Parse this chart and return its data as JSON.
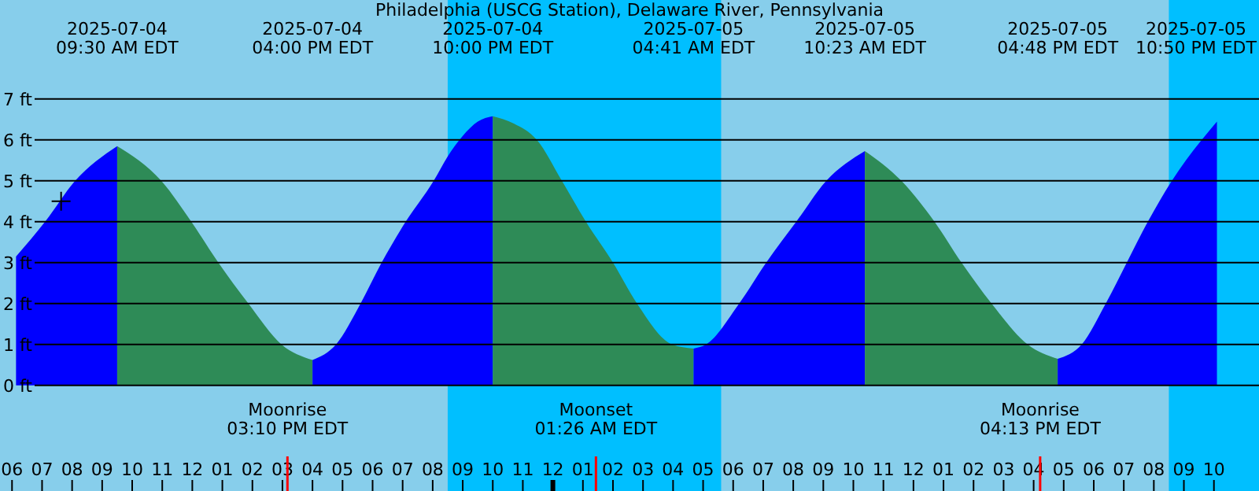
{
  "chart_data": {
    "type": "area",
    "title": "Philadelphia (USCG Station), Delaware River, Pennsylvania",
    "series": [
      {
        "color": "#0000ff",
        "x": [
          "2025-07-04T06:08",
          "2025-07-04T07:06",
          "2025-07-04T08:06",
          "2025-07-04T09:30"
        ],
        "values": [
          3.15,
          4,
          5,
          5.85
        ]
      },
      {
        "color": "#2e8b57",
        "x": [
          "2025-07-04T09:30",
          "2025-07-04T10:58",
          "2025-07-04T11:58",
          "2025-07-04T12:52",
          "2025-07-04T13:52",
          "2025-07-04T14:58",
          "2025-07-04T16:00"
        ],
        "values": [
          5.85,
          5,
          4,
          3,
          2,
          1,
          0.62
        ]
      },
      {
        "color": "#0000ff",
        "x": [
          "2025-07-04T16:00",
          "2025-07-04T16:47",
          "2025-07-04T17:36",
          "2025-07-04T18:18",
          "2025-07-04T19:06",
          "2025-07-04T20:02",
          "2025-07-04T20:30",
          "2025-07-04T21:00",
          "2025-07-04T21:30",
          "2025-07-04T22:00"
        ],
        "values": [
          0.62,
          1,
          2,
          3,
          4,
          5,
          5.6,
          6.1,
          6.45,
          6.58
        ]
      },
      {
        "color": "#2e8b57",
        "x": [
          "2025-07-04T22:00",
          "2025-07-04T22:42",
          "2025-07-04T23:28",
          "2025-07-05T00:18",
          "2025-07-05T01:06",
          "2025-07-05T02:00",
          "2025-07-05T02:48",
          "2025-07-05T03:58",
          "2025-07-05T04:41"
        ],
        "values": [
          6.58,
          6.4,
          6,
          5,
          4,
          3,
          2,
          1,
          0.9
        ]
      },
      {
        "color": "#0000ff",
        "x": [
          "2025-07-05T04:41",
          "2025-07-05T05:06",
          "2025-07-05T06:12",
          "2025-07-05T07:06",
          "2025-07-05T08:06",
          "2025-07-05T09:06",
          "2025-07-05T10:23"
        ],
        "values": [
          0.9,
          1,
          2,
          3,
          4,
          5,
          5.73
        ]
      },
      {
        "color": "#2e8b57",
        "x": [
          "2025-07-05T10:23",
          "2025-07-05T11:36",
          "2025-07-05T12:42",
          "2025-07-05T13:36",
          "2025-07-05T14:36",
          "2025-07-05T15:48",
          "2025-07-05T16:48"
        ],
        "values": [
          5.73,
          5,
          4,
          3,
          2,
          1,
          0.65
        ]
      },
      {
        "color": "#0000ff",
        "x": [
          "2025-07-05T16:48",
          "2025-07-05T17:36",
          "2025-07-05T18:24",
          "2025-07-05T19:06",
          "2025-07-05T19:48",
          "2025-07-05T20:36",
          "2025-07-05T22:06"
        ],
        "values": [
          0.65,
          1,
          2,
          3,
          4,
          5,
          6.45
        ]
      },
      {
        "type": "scatter",
        "color": "#000000",
        "marker": "cross",
        "x": [
          "2025-07-04T07:38"
        ],
        "values": [
          4.5
        ]
      }
    ],
    "xlim": [
      "2025-07-04T05:36",
      "2025-07-05T23:30"
    ],
    "xticks": [
      {
        "value": "2025-07-04T06:00",
        "label": "06"
      },
      {
        "value": "2025-07-04T07:00",
        "label": "07"
      },
      {
        "value": "2025-07-04T08:00",
        "label": "08"
      },
      {
        "value": "2025-07-04T09:00",
        "label": "09"
      },
      {
        "value": "2025-07-04T10:00",
        "label": "10"
      },
      {
        "value": "2025-07-04T11:00",
        "label": "11"
      },
      {
        "value": "2025-07-04T12:00",
        "label": "12"
      },
      {
        "value": "2025-07-04T13:00",
        "label": "01"
      },
      {
        "value": "2025-07-04T14:00",
        "label": "02"
      },
      {
        "value": "2025-07-04T15:00",
        "label": "03"
      },
      {
        "value": "2025-07-04T16:00",
        "label": "04"
      },
      {
        "value": "2025-07-04T17:00",
        "label": "05"
      },
      {
        "value": "2025-07-04T18:00",
        "label": "06"
      },
      {
        "value": "2025-07-04T19:00",
        "label": "07"
      },
      {
        "value": "2025-07-04T20:00",
        "label": "08"
      },
      {
        "value": "2025-07-04T21:00",
        "label": "09"
      },
      {
        "value": "2025-07-04T22:00",
        "label": "10"
      },
      {
        "value": "2025-07-04T23:00",
        "label": "11"
      },
      {
        "value": "2025-07-05T00:00",
        "label": "12"
      },
      {
        "value": "2025-07-05T01:00",
        "label": "01"
      },
      {
        "value": "2025-07-05T02:00",
        "label": "02"
      },
      {
        "value": "2025-07-05T03:00",
        "label": "03"
      },
      {
        "value": "2025-07-05T04:00",
        "label": "04"
      },
      {
        "value": "2025-07-05T05:00",
        "label": "05"
      },
      {
        "value": "2025-07-05T06:00",
        "label": "06"
      },
      {
        "value": "2025-07-05T07:00",
        "label": "07"
      },
      {
        "value": "2025-07-05T08:00",
        "label": "08"
      },
      {
        "value": "2025-07-05T09:00",
        "label": "09"
      },
      {
        "value": "2025-07-05T10:00",
        "label": "10"
      },
      {
        "value": "2025-07-05T11:00",
        "label": "11"
      },
      {
        "value": "2025-07-05T12:00",
        "label": "12"
      },
      {
        "value": "2025-07-05T13:00",
        "label": "01"
      },
      {
        "value": "2025-07-05T14:00",
        "label": "02"
      },
      {
        "value": "2025-07-05T15:00",
        "label": "03"
      },
      {
        "value": "2025-07-05T16:00",
        "label": "04"
      },
      {
        "value": "2025-07-05T17:00",
        "label": "05"
      },
      {
        "value": "2025-07-05T18:00",
        "label": "06"
      },
      {
        "value": "2025-07-05T19:00",
        "label": "07"
      },
      {
        "value": "2025-07-05T20:00",
        "label": "08"
      },
      {
        "value": "2025-07-05T21:00",
        "label": "09"
      },
      {
        "value": "2025-07-05T22:00",
        "label": "10"
      }
    ],
    "ylim": [
      -2.58,
      9.42
    ],
    "yticks": [
      {
        "value": 0,
        "label": "0 ft"
      },
      {
        "value": 1,
        "label": "1 ft"
      },
      {
        "value": 2,
        "label": "2 ft"
      },
      {
        "value": 3,
        "label": "3 ft"
      },
      {
        "value": 4,
        "label": "4 ft"
      },
      {
        "value": 5,
        "label": "5 ft"
      },
      {
        "value": 6,
        "label": "6 ft"
      },
      {
        "value": 7,
        "label": "7 ft"
      }
    ],
    "grid": "y",
    "bands": [
      {
        "axis": "x",
        "from": "2025-07-04T20:30",
        "to": "2025-07-05T05:36",
        "color": "#00bfff"
      },
      {
        "axis": "x",
        "from": "2025-07-05T20:30",
        "to": "2025-07-05T23:30",
        "color": "#00bfff"
      }
    ],
    "ref_lines": [
      {
        "axis": "x",
        "value": "2025-07-04T15:10",
        "label": "Moonrise\n03:10 PM EDT",
        "color": "#ff0000"
      },
      {
        "axis": "x",
        "value": "2025-07-05T01:26",
        "label": "Moonset\n01:26 AM EDT",
        "color": "#ff0000"
      },
      {
        "axis": "x",
        "value": "2025-07-05T16:13",
        "label": "Moonrise\n04:13 PM EDT",
        "color": "#ff0000"
      }
    ],
    "annotations": [
      "2025-07-04\n09:30 AM EDT",
      "2025-07-04\n04:00 PM EDT",
      "2025-07-04\n10:00 PM EDT",
      "2025-07-05\n04:41 AM EDT",
      "2025-07-05\n10:23 AM EDT",
      "2025-07-05\n04:48 PM EDT",
      "2025-07-05\n10:50 PM EDT"
    ]
  }
}
